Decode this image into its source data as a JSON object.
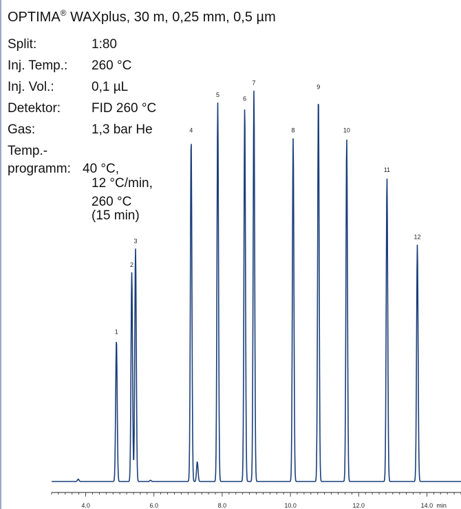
{
  "header": {
    "column_name": "OPTIMA",
    "registered_mark": "®",
    "column_spec": " WAXplus, 30 m, 0,25 mm, 0,5 µm"
  },
  "conditions": [
    {
      "label": "Split:",
      "value": "1:80"
    },
    {
      "label": "Inj. Temp.:",
      "value": "260 °C"
    },
    {
      "label": "Inj. Vol.:",
      "value": "0,1 µL"
    },
    {
      "label": "Detektor:",
      "value": "FID 260 °C"
    },
    {
      "label": "Gas:",
      "value": "1,3 bar He"
    },
    {
      "label": "Temp.-",
      "value": ""
    },
    {
      "label": "programm:",
      "value": "40 °C,"
    },
    {
      "label": "",
      "value": "12 °C/min,"
    },
    {
      "label": "",
      "value": "260 °C"
    },
    {
      "label": "",
      "value": "(15 min)"
    }
  ],
  "chart_data": {
    "type": "line",
    "title": "",
    "xlabel": "",
    "ylabel": "",
    "x_unit_label": "min",
    "xlim": [
      3.0,
      15.0
    ],
    "ylim": [
      0,
      1.0
    ],
    "x_ticks": [
      {
        "value": 4.0,
        "label": "4.0"
      },
      {
        "value": 6.0,
        "label": "6.0"
      },
      {
        "value": 8.0,
        "label": "8.0"
      },
      {
        "value": 10.0,
        "label": "10.0"
      },
      {
        "value": 12.0,
        "label": "12.0"
      },
      {
        "value": 14.0,
        "label": "14.0"
      }
    ],
    "grid": false,
    "line_color": "#1a3e7a",
    "peaks": [
      {
        "label": "1",
        "rt": 4.9,
        "height": 0.36
      },
      {
        "label": "2",
        "rt": 5.35,
        "height": 0.53
      },
      {
        "label": "3",
        "rt": 5.46,
        "height": 0.59
      },
      {
        "label": "4",
        "rt": 7.09,
        "height": 0.87
      },
      {
        "label": "5",
        "rt": 7.87,
        "height": 0.96
      },
      {
        "label": "6",
        "rt": 8.66,
        "height": 0.95
      },
      {
        "label": "7",
        "rt": 8.93,
        "height": 0.99
      },
      {
        "label": "8",
        "rt": 10.08,
        "height": 0.87
      },
      {
        "label": "9",
        "rt": 10.82,
        "height": 0.98
      },
      {
        "label": "10",
        "rt": 11.65,
        "height": 0.87
      },
      {
        "label": "11",
        "rt": 12.83,
        "height": 0.77
      },
      {
        "label": "12",
        "rt": 13.72,
        "height": 0.6
      }
    ],
    "minor_peaks": [
      {
        "rt": 3.78,
        "height": 0.006
      },
      {
        "rt": 7.27,
        "height": 0.05
      },
      {
        "rt": 5.9,
        "height": 0.003
      }
    ]
  }
}
